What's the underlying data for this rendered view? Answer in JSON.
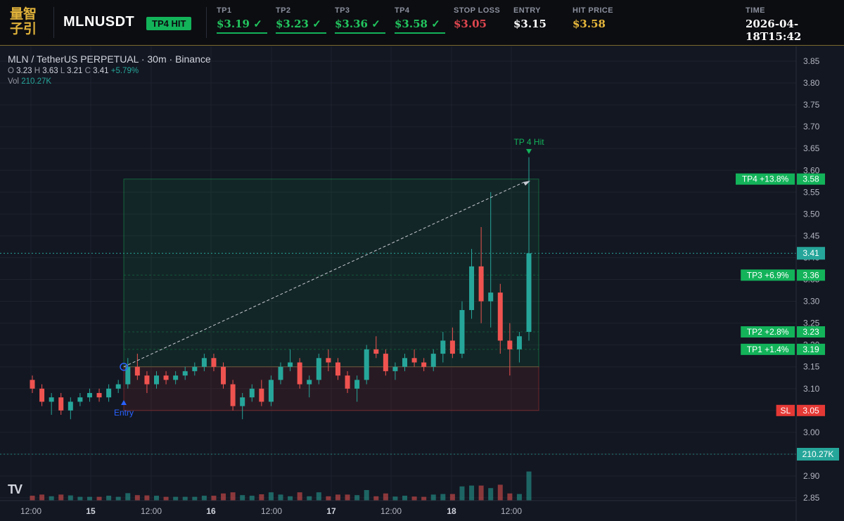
{
  "header": {
    "logo_line1": "量智",
    "logo_line2": "子引",
    "symbol": "MLNUSDT",
    "badge": "TP4 HIT",
    "tp1": {
      "label": "TP1",
      "value": "$3.19 ✓"
    },
    "tp2": {
      "label": "TP2",
      "value": "$3.23 ✓"
    },
    "tp3": {
      "label": "TP3",
      "value": "$3.36 ✓"
    },
    "tp4": {
      "label": "TP4",
      "value": "$3.58 ✓"
    },
    "stop_loss": {
      "label": "STOP LOSS",
      "value": "$3.05"
    },
    "entry": {
      "label": "ENTRY",
      "value": "$3.15"
    },
    "hit_price": {
      "label": "HIT PRICE",
      "value": "$3.58"
    },
    "time": {
      "label": "TIME",
      "value": "2026-04-18T15:42"
    }
  },
  "legend": {
    "title": "MLN / TetherUS PERPETUAL · 30m · Binance",
    "o_label": "O",
    "o": "3.23",
    "h_label": "H",
    "h": "3.63",
    "l_label": "L",
    "l": "3.21",
    "c_label": "C",
    "c": "3.41",
    "change": "+5.79%",
    "vol_label": "Vol",
    "vol": "210.27K"
  },
  "colors": {
    "up": "#26a69a",
    "down": "#ef5350",
    "tp": "#13b35a",
    "sl": "#e53935",
    "entry": "#2962ff"
  },
  "chart_data": {
    "type": "candlestick",
    "symbol": "MLN / TetherUS PERPETUAL",
    "interval": "30m",
    "exchange": "Binance",
    "ylim": [
      2.85,
      3.87
    ],
    "yticks": [
      "3.85",
      "3.80",
      "3.75",
      "3.70",
      "3.65",
      "3.60",
      "3.55",
      "3.50",
      "3.45",
      "3.40",
      "3.35",
      "3.30",
      "3.25",
      "3.20",
      "3.15",
      "3.10",
      "3.05",
      "3.00",
      "2.95",
      "2.90",
      "2.85"
    ],
    "xticks": [
      "12:00",
      "15",
      "12:00",
      "16",
      "12:00",
      "17",
      "12:00",
      "18",
      "12:00"
    ],
    "last_price": "3.41",
    "volume_last": "210.27K",
    "levels": [
      {
        "name": "TP4",
        "label": "TP4 +13.8%",
        "price": "3.58",
        "value": 3.58
      },
      {
        "name": "TP3",
        "label": "TP3 +6.9%",
        "price": "3.36",
        "value": 3.36
      },
      {
        "name": "TP2",
        "label": "TP2 +2.8%",
        "price": "3.23",
        "value": 3.23
      },
      {
        "name": "TP1",
        "label": "TP1 +1.4%",
        "price": "3.19",
        "value": 3.19
      },
      {
        "name": "SL",
        "label": "SL",
        "price": "3.05",
        "value": 3.05
      }
    ],
    "entry": {
      "label": "Entry",
      "value": 3.15
    },
    "hit_annotation": "TP 4 Hit",
    "candles_approx": [
      [
        3.12,
        3.13,
        3.09,
        3.1
      ],
      [
        3.1,
        3.11,
        3.06,
        3.07
      ],
      [
        3.07,
        3.09,
        3.04,
        3.08
      ],
      [
        3.08,
        3.09,
        3.04,
        3.05
      ],
      [
        3.05,
        3.08,
        3.03,
        3.07
      ],
      [
        3.07,
        3.09,
        3.06,
        3.08
      ],
      [
        3.08,
        3.1,
        3.07,
        3.09
      ],
      [
        3.09,
        3.1,
        3.07,
        3.08
      ],
      [
        3.08,
        3.11,
        3.07,
        3.1
      ],
      [
        3.1,
        3.12,
        3.09,
        3.11
      ],
      [
        3.11,
        3.17,
        3.1,
        3.15
      ],
      [
        3.15,
        3.18,
        3.12,
        3.13
      ],
      [
        3.13,
        3.14,
        3.09,
        3.11
      ],
      [
        3.11,
        3.14,
        3.1,
        3.13
      ],
      [
        3.13,
        3.14,
        3.11,
        3.12
      ],
      [
        3.12,
        3.14,
        3.11,
        3.13
      ],
      [
        3.13,
        3.15,
        3.12,
        3.14
      ],
      [
        3.14,
        3.16,
        3.13,
        3.15
      ],
      [
        3.15,
        3.18,
        3.14,
        3.17
      ],
      [
        3.17,
        3.18,
        3.14,
        3.15
      ],
      [
        3.15,
        3.16,
        3.1,
        3.11
      ],
      [
        3.11,
        3.12,
        3.05,
        3.06
      ],
      [
        3.06,
        3.09,
        3.03,
        3.08
      ],
      [
        3.08,
        3.11,
        3.07,
        3.1
      ],
      [
        3.1,
        3.12,
        3.06,
        3.07
      ],
      [
        3.07,
        3.13,
        3.06,
        3.12
      ],
      [
        3.12,
        3.16,
        3.11,
        3.15
      ],
      [
        3.15,
        3.19,
        3.14,
        3.16
      ],
      [
        3.16,
        3.17,
        3.1,
        3.11
      ],
      [
        3.11,
        3.13,
        3.08,
        3.12
      ],
      [
        3.12,
        3.18,
        3.11,
        3.17
      ],
      [
        3.17,
        3.19,
        3.14,
        3.16
      ],
      [
        3.16,
        3.17,
        3.12,
        3.13
      ],
      [
        3.13,
        3.14,
        3.09,
        3.1
      ],
      [
        3.1,
        3.13,
        3.07,
        3.12
      ],
      [
        3.12,
        3.2,
        3.11,
        3.19
      ],
      [
        3.19,
        3.22,
        3.17,
        3.18
      ],
      [
        3.18,
        3.19,
        3.13,
        3.14
      ],
      [
        3.14,
        3.16,
        3.12,
        3.15
      ],
      [
        3.15,
        3.18,
        3.14,
        3.17
      ],
      [
        3.17,
        3.19,
        3.15,
        3.16
      ],
      [
        3.16,
        3.17,
        3.14,
        3.15
      ],
      [
        3.15,
        3.19,
        3.14,
        3.18
      ],
      [
        3.18,
        3.23,
        3.16,
        3.21
      ],
      [
        3.21,
        3.24,
        3.17,
        3.18
      ],
      [
        3.18,
        3.3,
        3.17,
        3.28
      ],
      [
        3.28,
        3.42,
        3.26,
        3.38
      ],
      [
        3.38,
        3.47,
        3.25,
        3.3
      ],
      [
        3.3,
        3.55,
        3.24,
        3.32
      ],
      [
        3.32,
        3.34,
        3.18,
        3.21
      ],
      [
        3.21,
        3.25,
        3.13,
        3.19
      ],
      [
        3.19,
        3.23,
        3.16,
        3.22
      ],
      [
        3.23,
        3.63,
        3.21,
        3.41
      ]
    ]
  }
}
